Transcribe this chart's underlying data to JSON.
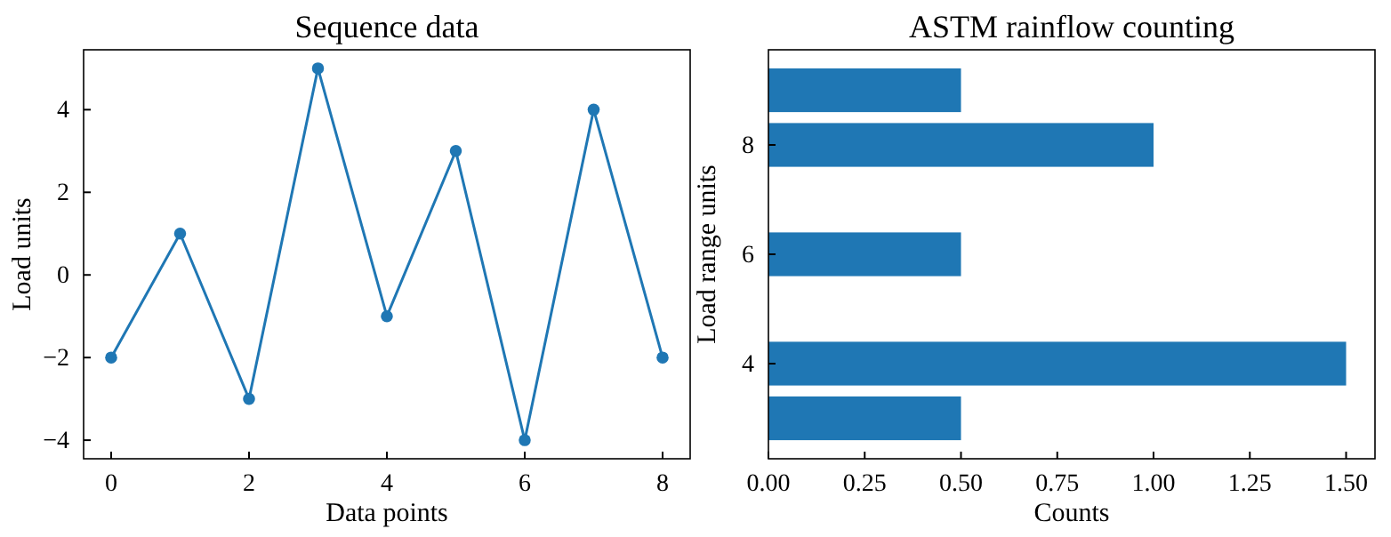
{
  "chart_data": [
    {
      "type": "line",
      "title": "Sequence data",
      "xlabel": "Data points",
      "ylabel": "Load units",
      "marker": "circle",
      "x": [
        0,
        1,
        2,
        3,
        4,
        5,
        6,
        7,
        8
      ],
      "series": [
        {
          "color": "#1f77b4",
          "values": [
            -2,
            1,
            -3,
            5,
            -1,
            3,
            -4,
            4,
            -2
          ]
        }
      ],
      "xlim": [
        -0.4,
        8.4
      ],
      "xticks": [
        0,
        2,
        4,
        6,
        8
      ],
      "ylim": [
        -4.45,
        5.45
      ],
      "yticks": [
        -4,
        -2,
        0,
        2,
        4
      ]
    },
    {
      "type": "bar",
      "orientation": "horizontal",
      "title": "ASTM rainflow counting",
      "xlabel": "Counts",
      "ylabel": "Load range units",
      "x": [
        3,
        4,
        6,
        8,
        9
      ],
      "series": [
        {
          "color": "#1f77b4",
          "values": [
            0.5,
            1.5,
            0.5,
            1.0,
            0.5
          ]
        }
      ],
      "xlim": [
        0,
        1.575
      ],
      "xticks": [
        {
          "value": 0,
          "label": "0.00"
        },
        {
          "value": 0.25,
          "label": "0.25"
        },
        {
          "value": 0.5,
          "label": "0.50"
        },
        {
          "value": 0.75,
          "label": "0.75"
        },
        {
          "value": 1,
          "label": "1.00"
        },
        {
          "value": 1.25,
          "label": "1.25"
        },
        {
          "value": 1.5,
          "label": "1.50"
        }
      ],
      "ylim": [
        2.26,
        9.74
      ],
      "yticks": [
        4,
        6,
        8
      ]
    }
  ]
}
